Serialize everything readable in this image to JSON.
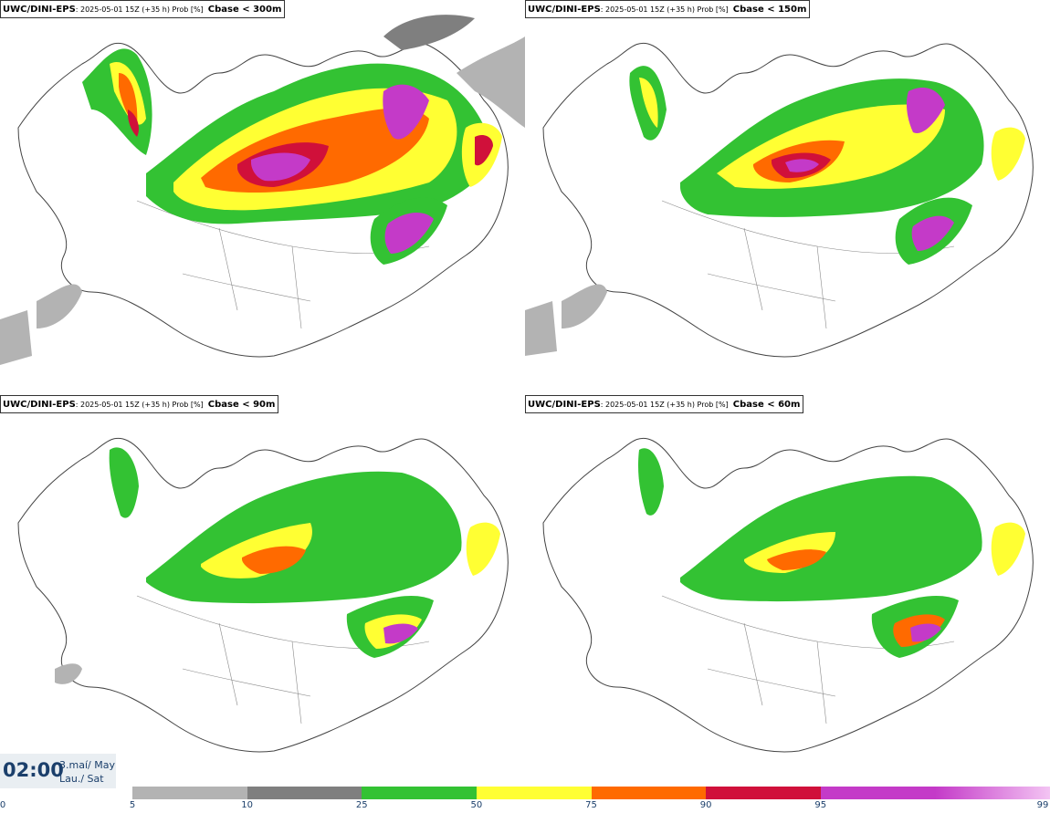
{
  "panels": [
    {
      "model": "UWC/DINI-EPS",
      "meta": ": 2025-05-01 15Z (+35 h) Prob [%]",
      "param": "Cbase < 300m"
    },
    {
      "model": "UWC/DINI-EPS",
      "meta": ": 2025-05-01 15Z (+35 h) Prob [%]",
      "param": "Cbase < 150m"
    },
    {
      "model": "UWC/DINI-EPS",
      "meta": ": 2025-05-01 15Z (+35 h) Prob [%]",
      "param": "Cbase < 90m"
    },
    {
      "model": "UWC/DINI-EPS",
      "meta": ": 2025-05-01 15Z (+35 h) Prob [%]",
      "param": "Cbase < 60m"
    }
  ],
  "valid_time": {
    "clock": "02:00",
    "date_line1": "3.maí/ May",
    "date_line2": "Lau./ Sat"
  },
  "colorbar": {
    "ticks": [
      "0",
      "5",
      "10",
      "25",
      "50",
      "75",
      "90",
      "95",
      "99"
    ],
    "colors": [
      "#ffffff",
      "#b3b3b3",
      "#7f7f7f",
      "#33c233",
      "#ffff33",
      "#ff6a00",
      "#d0103a",
      "#c43ac8",
      "#f3c4f3"
    ]
  },
  "colors": {
    "land_outline": "#444444",
    "sea": "#ffffff",
    "label_text": "#1b3f6b"
  }
}
